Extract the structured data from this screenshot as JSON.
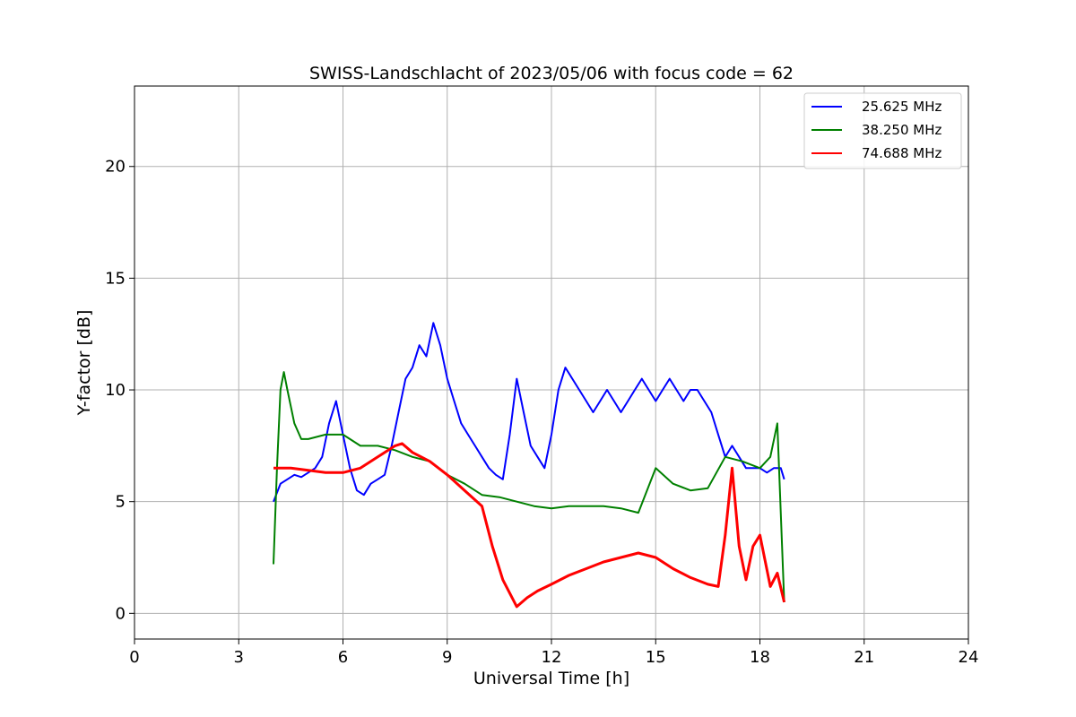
{
  "chart_data": {
    "type": "line",
    "title": "SWISS-Landschlacht of 2023/05/06 with focus code = 62",
    "xlabel": "Universal Time [h]",
    "ylabel": "Y-factor [dB]",
    "xlim": [
      0,
      24
    ],
    "ylim": [
      -1.15,
      23.6
    ],
    "xticks": [
      "0",
      "3",
      "6",
      "9",
      "12",
      "15",
      "18",
      "21",
      "24"
    ],
    "yticks": [
      "0",
      "5",
      "10",
      "15",
      "20"
    ],
    "grid": true,
    "legend_position": "top-right",
    "series": [
      {
        "name": "25.625 MHz",
        "color": "#0000ff",
        "x": [
          4.0,
          4.2,
          4.4,
          4.6,
          4.8,
          5.0,
          5.2,
          5.4,
          5.6,
          5.8,
          6.0,
          6.2,
          6.4,
          6.6,
          6.8,
          7.0,
          7.2,
          7.4,
          7.6,
          7.8,
          8.0,
          8.2,
          8.4,
          8.6,
          8.8,
          9.0,
          9.2,
          9.4,
          9.6,
          9.8,
          10.0,
          10.2,
          10.4,
          10.6,
          10.8,
          11.0,
          11.2,
          11.4,
          11.6,
          11.8,
          12.0,
          12.2,
          12.4,
          12.6,
          12.8,
          13.0,
          13.2,
          13.4,
          13.6,
          13.8,
          14.0,
          14.2,
          14.4,
          14.6,
          14.8,
          15.0,
          15.2,
          15.4,
          15.6,
          15.8,
          16.0,
          16.2,
          16.4,
          16.6,
          16.8,
          17.0,
          17.2,
          17.4,
          17.6,
          17.8,
          18.0,
          18.2,
          18.4,
          18.6,
          18.7
        ],
        "values": [
          5.0,
          5.8,
          6.0,
          6.2,
          6.1,
          6.3,
          6.5,
          7.0,
          8.5,
          9.5,
          8.0,
          6.5,
          5.5,
          5.3,
          5.8,
          6.0,
          6.2,
          7.5,
          9.0,
          10.5,
          11.0,
          12.0,
          11.5,
          13.0,
          12.0,
          10.5,
          9.5,
          8.5,
          8.0,
          7.5,
          7.0,
          6.5,
          6.2,
          6.0,
          8.0,
          10.5,
          9.0,
          7.5,
          7.0,
          6.5,
          8.0,
          10.0,
          11.0,
          10.5,
          10.0,
          9.5,
          9.0,
          9.5,
          10.0,
          9.5,
          9.0,
          9.5,
          10.0,
          10.5,
          10.0,
          9.5,
          10.0,
          10.5,
          10.0,
          9.5,
          10.0,
          10.0,
          9.5,
          9.0,
          8.0,
          7.0,
          7.5,
          7.0,
          6.5,
          6.5,
          6.5,
          6.3,
          6.5,
          6.5,
          6.0
        ]
      },
      {
        "name": "38.250 MHz",
        "color": "#008000",
        "x": [
          4.0,
          4.1,
          4.2,
          4.3,
          4.4,
          4.6,
          4.8,
          5.0,
          5.5,
          6.0,
          6.5,
          7.0,
          7.5,
          8.0,
          8.5,
          9.0,
          9.5,
          10.0,
          10.5,
          11.0,
          11.5,
          12.0,
          12.5,
          13.0,
          13.5,
          14.0,
          14.5,
          15.0,
          15.5,
          16.0,
          16.5,
          17.0,
          17.5,
          18.0,
          18.3,
          18.5,
          18.7
        ],
        "values": [
          2.2,
          6.5,
          10.0,
          10.8,
          10.0,
          8.5,
          7.8,
          7.8,
          8.0,
          8.0,
          7.5,
          7.5,
          7.3,
          7.0,
          6.8,
          6.2,
          5.8,
          5.3,
          5.2,
          5.0,
          4.8,
          4.7,
          4.8,
          4.8,
          4.8,
          4.7,
          4.5,
          6.5,
          5.8,
          5.5,
          5.6,
          7.0,
          6.8,
          6.5,
          7.0,
          8.5,
          0.5
        ]
      },
      {
        "name": "74.688 MHz",
        "color": "#ff0000",
        "x": [
          4.0,
          4.5,
          5.0,
          5.5,
          6.0,
          6.5,
          7.0,
          7.5,
          7.7,
          8.0,
          8.5,
          9.0,
          9.5,
          10.0,
          10.3,
          10.6,
          11.0,
          11.3,
          11.6,
          12.0,
          12.5,
          13.0,
          13.5,
          14.0,
          14.5,
          15.0,
          15.5,
          16.0,
          16.5,
          16.8,
          17.0,
          17.2,
          17.4,
          17.6,
          17.8,
          18.0,
          18.3,
          18.5,
          18.7
        ],
        "values": [
          6.5,
          6.5,
          6.4,
          6.3,
          6.3,
          6.5,
          7.0,
          7.5,
          7.6,
          7.2,
          6.8,
          6.2,
          5.5,
          4.8,
          3.0,
          1.5,
          0.3,
          0.7,
          1.0,
          1.3,
          1.7,
          2.0,
          2.3,
          2.5,
          2.7,
          2.5,
          2.0,
          1.6,
          1.3,
          1.2,
          3.5,
          6.5,
          3.0,
          1.5,
          3.0,
          3.5,
          1.2,
          1.8,
          0.5
        ]
      }
    ]
  }
}
